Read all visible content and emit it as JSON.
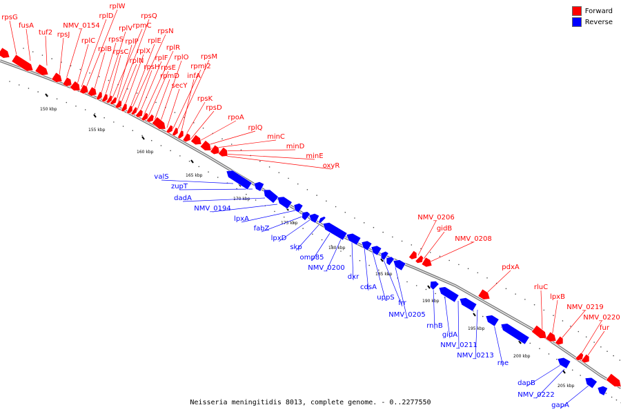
{
  "legend": {
    "forward_label": "Forward",
    "reverse_label": "Reverse",
    "forward_color": "#ff0000",
    "reverse_color": "#0000ff"
  },
  "caption": "Neisseria meningitidis 8013, complete genome. - 0..2277550",
  "ticks": [
    {
      "label": "150 kbp"
    },
    {
      "label": "155 kbp"
    },
    {
      "label": "160 kbp"
    },
    {
      "label": "165 kbp"
    },
    {
      "label": "170 kbp"
    },
    {
      "label": "175 kbp"
    },
    {
      "label": "180 kbp"
    },
    {
      "label": "185 kbp"
    },
    {
      "label": "190 kbp"
    },
    {
      "label": "195 kbp"
    },
    {
      "label": "200 kbp"
    },
    {
      "label": "205 kbp"
    }
  ],
  "forward_genes": [
    "rpsG",
    "fusA",
    "tuf2",
    "rpsJ",
    "NMV_0154",
    "rplC",
    "rplD",
    "rplW",
    "rplB",
    "rpsS",
    "rplV",
    "rpsC",
    "rpmC",
    "rplP",
    "rpsQ",
    "rplN",
    "rplX",
    "rplE",
    "rpsN",
    "rpsH",
    "rplF",
    "rplR",
    "rpsE",
    "rpmD",
    "rplO",
    "secY",
    "rpmJ2",
    "rpsM",
    "infA",
    "rpsK",
    "rpsD",
    "rpoA",
    "rplQ",
    "minC",
    "minD",
    "minE",
    "oxyR",
    "NMV_0206",
    "gidB",
    "NMV_0208",
    "pdxA",
    "rluC",
    "lpxB",
    "NMV_0219",
    "NMV_0220",
    "fur"
  ],
  "reverse_genes": [
    "valS",
    "zupT",
    "dadA",
    "NMV_0194",
    "lpxA",
    "fabZ",
    "lpxD",
    "skp",
    "omp85",
    "NMV_0200",
    "dxr",
    "cdsA",
    "uppS",
    "frr",
    "NMV_0205",
    "rnhB",
    "gidA",
    "NMV_0211",
    "NMV_0213",
    "rne",
    "dapB",
    "NMV_0222",
    "gapA"
  ]
}
